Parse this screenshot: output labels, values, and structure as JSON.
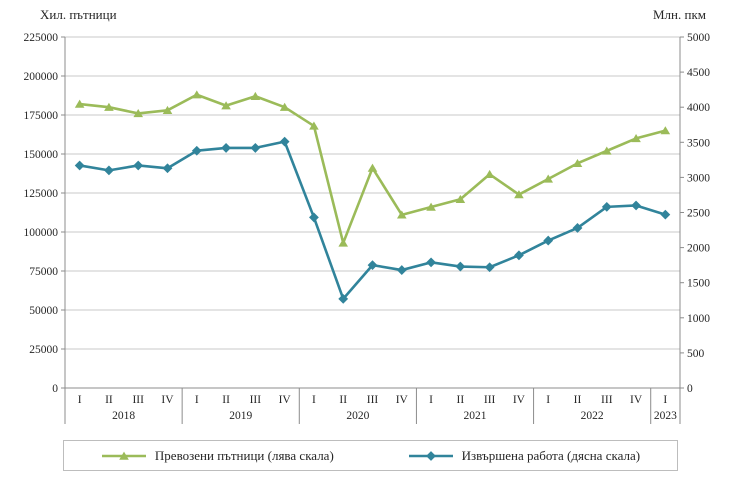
{
  "chart_data": {
    "type": "line",
    "title": "",
    "left_axis": {
      "title": "Хил. пътници",
      "min": 0,
      "max": 225000,
      "ticks": [
        0,
        25000,
        50000,
        75000,
        100000,
        125000,
        150000,
        175000,
        200000,
        225000
      ]
    },
    "right_axis": {
      "title": "Млн. пкм",
      "min": 0,
      "max": 5000,
      "ticks": [
        0,
        500,
        1000,
        1500,
        2000,
        2500,
        3000,
        3500,
        4000,
        4500,
        5000
      ]
    },
    "quarter_labels": [
      "I",
      "II",
      "III",
      "IV",
      "I",
      "II",
      "III",
      "IV",
      "I",
      "II",
      "III",
      "IV",
      "I",
      "II",
      "III",
      "IV",
      "I",
      "II",
      "III",
      "IV",
      "I"
    ],
    "year_groups": [
      {
        "label": "2018",
        "count": 4
      },
      {
        "label": "2019",
        "count": 4
      },
      {
        "label": "2020",
        "count": 4
      },
      {
        "label": "2021",
        "count": 4
      },
      {
        "label": "2022",
        "count": 4
      },
      {
        "label": "2023",
        "count": 1
      }
    ],
    "grid": true,
    "legend_position": "bottom",
    "colors": {
      "grid": "#c9c9c9",
      "axis": "#8c8c8c",
      "text": "#262626"
    },
    "series": [
      {
        "name": "Превозени  пътници  (лява скала)",
        "axis": "left",
        "color": "#9bbb59",
        "marker": "triangle",
        "values": [
          182000,
          180000,
          176000,
          178000,
          188000,
          181000,
          187000,
          180000,
          168000,
          93000,
          141000,
          111000,
          116000,
          121000,
          137000,
          124000,
          134000,
          144000,
          152000,
          160000,
          165000
        ]
      },
      {
        "name": "Извършена  работа (дясна скала)",
        "axis": "right",
        "color": "#31849b",
        "marker": "diamond",
        "values": [
          3170,
          3100,
          3170,
          3130,
          3380,
          3420,
          3420,
          3510,
          2430,
          1270,
          1750,
          1680,
          1790,
          1730,
          1720,
          1890,
          2100,
          2280,
          2580,
          2600,
          2470
        ]
      }
    ]
  }
}
